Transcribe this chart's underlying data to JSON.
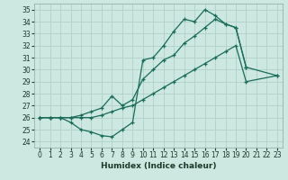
{
  "xlabel": "Humidex (Indice chaleur)",
  "bg_color": "#cce8e0",
  "grid_color": "#b0d0c8",
  "line_color": "#1a6b5a",
  "xlim": [
    -0.5,
    23.5
  ],
  "ylim": [
    23.5,
    35.5
  ],
  "xticks": [
    0,
    1,
    2,
    3,
    4,
    5,
    6,
    7,
    8,
    9,
    10,
    11,
    12,
    13,
    14,
    15,
    16,
    17,
    18,
    19,
    20,
    21,
    22,
    23
  ],
  "yticks": [
    24,
    25,
    26,
    27,
    28,
    29,
    30,
    31,
    32,
    33,
    34,
    35
  ],
  "line1_x": [
    0,
    1,
    2,
    3,
    4,
    5,
    6,
    7,
    8,
    9,
    10,
    11,
    12,
    13,
    14,
    15,
    16,
    17,
    18,
    19,
    20
  ],
  "line1_y": [
    26.0,
    26.0,
    26.0,
    25.6,
    25.0,
    24.8,
    24.5,
    24.4,
    25.0,
    25.6,
    30.8,
    31.0,
    32.0,
    33.2,
    34.2,
    34.0,
    35.0,
    34.5,
    33.8,
    33.5,
    30.2
  ],
  "line2_x": [
    0,
    1,
    2,
    3,
    4,
    5,
    6,
    7,
    8,
    9,
    10,
    11,
    12,
    13,
    14,
    15,
    16,
    17,
    18,
    19,
    20,
    23
  ],
  "line2_y": [
    26.0,
    26.0,
    26.0,
    26.0,
    26.2,
    26.5,
    26.8,
    27.8,
    27.0,
    27.5,
    29.2,
    30.0,
    30.8,
    31.2,
    32.2,
    32.8,
    33.5,
    34.2,
    33.8,
    33.5,
    30.2,
    29.5
  ],
  "line3_x": [
    0,
    1,
    2,
    3,
    4,
    5,
    6,
    7,
    8,
    9,
    10,
    11,
    12,
    13,
    14,
    15,
    16,
    17,
    18,
    19,
    20,
    23
  ],
  "line3_y": [
    26.0,
    26.0,
    26.0,
    26.0,
    26.0,
    26.0,
    26.2,
    26.5,
    26.8,
    27.0,
    27.5,
    28.0,
    28.5,
    29.0,
    29.5,
    30.0,
    30.5,
    31.0,
    31.5,
    32.0,
    29.0,
    29.5
  ]
}
